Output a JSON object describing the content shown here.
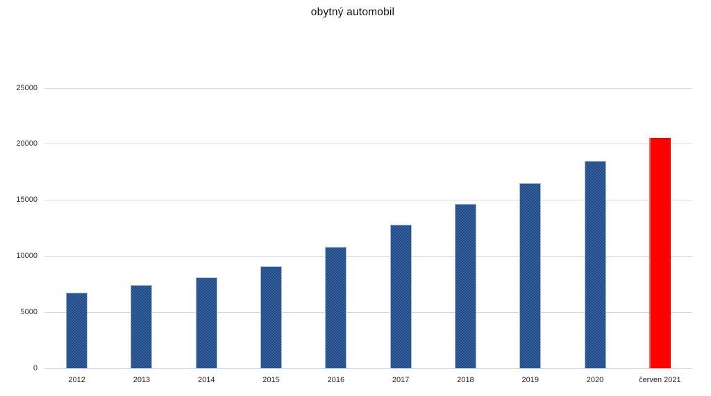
{
  "chart_data": {
    "type": "bar",
    "title": "obytný automobil",
    "categories": [
      "2012",
      "2013",
      "2014",
      "2015",
      "2016",
      "2017",
      "2018",
      "2019",
      "2020",
      "červen 2021"
    ],
    "values": [
      6750,
      7400,
      8100,
      9100,
      10800,
      12800,
      14650,
      16500,
      18500,
      20550
    ],
    "bar_colors": [
      "#2E5B9E",
      "#2E5B9E",
      "#2E5B9E",
      "#2E5B9E",
      "#2E5B9E",
      "#2E5B9E",
      "#2E5B9E",
      "#2E5B9E",
      "#2E5B9E",
      "#FF0000"
    ],
    "highlighted_category": "červen 2021",
    "xlabel": "",
    "ylabel": "",
    "ylim": [
      0,
      25000
    ],
    "yticks": [
      0,
      5000,
      10000,
      15000,
      20000,
      25000
    ],
    "grid": true,
    "legend": "none",
    "colors": {
      "default_bar": "#2E5B9E",
      "highlight_bar": "#FF0000",
      "gridline": "#D9D9D9",
      "axis_text": "#262626",
      "title_text": "#111111",
      "background": "#FFFFFF"
    }
  }
}
